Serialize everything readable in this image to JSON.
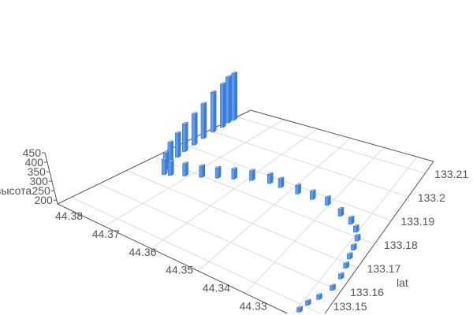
{
  "chart_data": {
    "type": "bar3D",
    "title": "",
    "x_axis": {
      "name": "",
      "ticks": [
        "44.33",
        "44.34",
        "44.35",
        "44.36",
        "44.37",
        "44.38"
      ],
      "range": [
        44.325,
        44.38
      ]
    },
    "y_axis": {
      "name": "lat",
      "ticks": [
        "133.15",
        "133.16",
        "133.17",
        "133.18",
        "133.19",
        "133.2",
        "133.21"
      ],
      "range": [
        133.145,
        133.215
      ]
    },
    "z_axis": {
      "name": "высота",
      "ticks": [
        "200",
        "250",
        "300",
        "350",
        "400",
        "450"
      ],
      "range": [
        180,
        450
      ]
    },
    "grid": true,
    "bar_color": "#5b9cf2",
    "points": [
      [
        44.3294,
        133.1471,
        205
      ],
      [
        44.3289,
        133.1506,
        205
      ],
      [
        44.3278,
        133.1541,
        206
      ],
      [
        44.3267,
        133.159,
        207
      ],
      [
        44.3267,
        133.1639,
        208
      ],
      [
        44.3272,
        133.1681,
        208
      ],
      [
        44.3278,
        133.1716,
        209
      ],
      [
        44.3283,
        133.1751,
        210
      ],
      [
        44.3289,
        133.1786,
        212
      ],
      [
        44.3305,
        133.1814,
        215
      ],
      [
        44.3327,
        133.1835,
        218
      ],
      [
        44.336,
        133.1849,
        222
      ],
      [
        44.3404,
        133.187,
        226
      ],
      [
        44.3443,
        133.187,
        228
      ],
      [
        44.3481,
        133.187,
        230
      ],
      [
        44.3525,
        133.187,
        232
      ],
      [
        44.3553,
        133.187,
        234
      ],
      [
        44.3591,
        133.1856,
        236
      ],
      [
        44.3624,
        133.1835,
        238
      ],
      [
        44.3652,
        133.1814,
        240
      ],
      [
        44.3679,
        133.1793,
        245
      ],
      [
        44.3707,
        133.1772,
        252
      ],
      [
        44.3729,
        133.1751,
        260
      ],
      [
        44.374,
        133.1744,
        268
      ],
      [
        44.375,
        133.1765,
        280
      ],
      [
        44.3762,
        133.18,
        300
      ],
      [
        44.3767,
        133.1835,
        320
      ],
      [
        44.3773,
        133.187,
        340
      ],
      [
        44.3778,
        133.1912,
        360
      ],
      [
        44.3784,
        133.1954,
        380
      ],
      [
        44.3789,
        133.1996,
        410
      ],
      [
        44.3789,
        133.2031,
        430
      ],
      [
        44.3795,
        133.2059,
        445
      ],
      [
        44.3795,
        133.208,
        450
      ]
    ]
  }
}
